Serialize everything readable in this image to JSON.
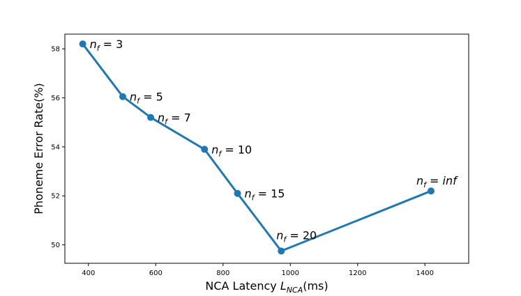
{
  "chart_data": {
    "type": "line",
    "title": "",
    "xlabel": "NCA Latency L_NCA(ms)",
    "xlabel_parts": {
      "prefix": "NCA Latency ",
      "var": "L",
      "sub": "NCA",
      "suffix": "(ms)"
    },
    "ylabel": "Phoneme Error Rate(%)",
    "xlim": [
      330,
      1530
    ],
    "ylim": [
      49.25,
      58.6
    ],
    "xticks": [
      400,
      600,
      800,
      1000,
      1200,
      1400
    ],
    "yticks": [
      50,
      52,
      54,
      56,
      58
    ],
    "grid": false,
    "color": "#1f77b4",
    "points": [
      {
        "x": 383,
        "y": 58.2,
        "label": "3"
      },
      {
        "x": 502,
        "y": 56.05,
        "label": "5"
      },
      {
        "x": 585,
        "y": 55.2,
        "label": "7"
      },
      {
        "x": 745,
        "y": 53.9,
        "label": "10"
      },
      {
        "x": 843,
        "y": 52.1,
        "label": "15"
      },
      {
        "x": 973,
        "y": 49.75,
        "label": "20"
      },
      {
        "x": 1418,
        "y": 52.2,
        "label": "inf"
      }
    ],
    "label_var": "n",
    "label_sub": "f"
  }
}
